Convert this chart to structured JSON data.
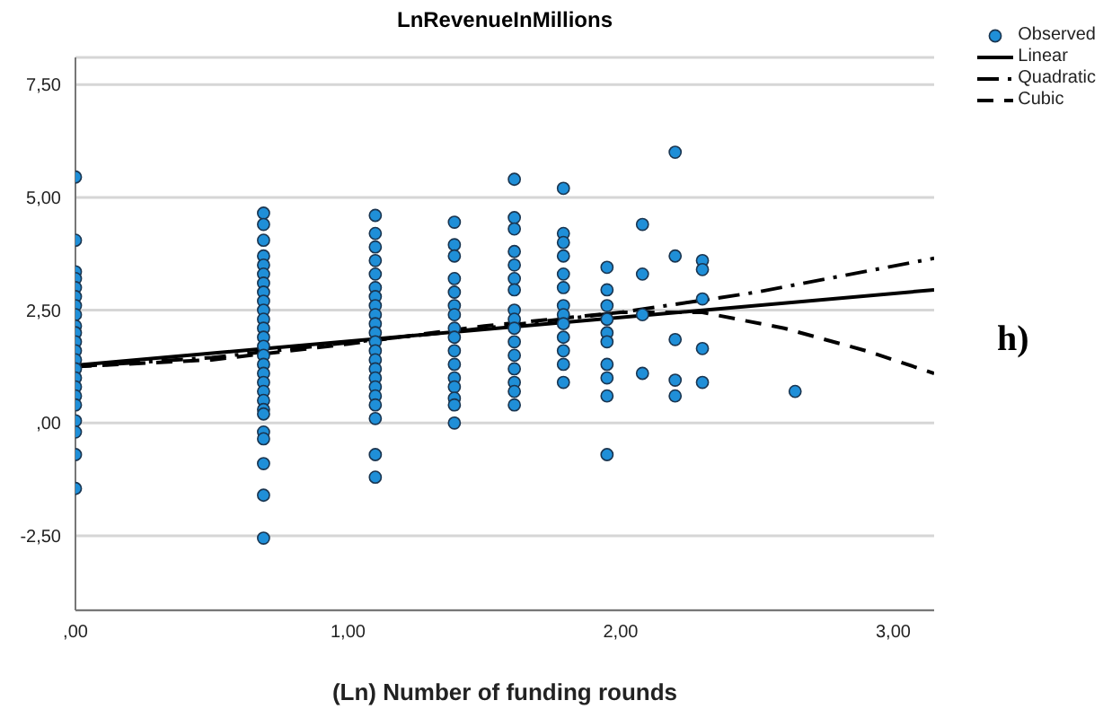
{
  "chart_data": {
    "type": "scatter",
    "title": "LnRevenueInMillions",
    "xlabel": "(Ln) Number of funding rounds",
    "annotations": [
      "h)"
    ],
    "xlim": [
      0,
      3.15
    ],
    "xticks": [
      {
        "value": 0,
        "label": ",00"
      },
      {
        "value": 1,
        "label": "1,00"
      },
      {
        "value": 2,
        "label": "2,00"
      },
      {
        "value": 3,
        "label": "3,00"
      }
    ],
    "ylim": [
      -4.15,
      8.1
    ],
    "yticks": [
      {
        "value": -2.5,
        "label": "-2,50"
      },
      {
        "value": 0,
        "label": ",00"
      },
      {
        "value": 2.5,
        "label": "2,50"
      },
      {
        "value": 5,
        "label": "5,00"
      },
      {
        "value": 7.5,
        "label": "7,50"
      }
    ],
    "grid": "y",
    "legend": "top right",
    "series": [
      {
        "name": "Observed",
        "marker": "circle",
        "color": "#1f8fd8",
        "x": [
          0,
          0,
          0,
          0,
          0,
          0,
          0,
          0,
          0,
          0,
          0,
          0,
          0,
          0,
          0,
          0,
          0,
          0,
          0,
          0,
          0,
          0,
          0.69,
          0.69,
          0.69,
          0.69,
          0.69,
          0.69,
          0.69,
          0.69,
          0.69,
          0.69,
          0.69,
          0.69,
          0.69,
          0.69,
          0.69,
          0.69,
          0.69,
          0.69,
          0.69,
          0.69,
          0.69,
          0.69,
          0.69,
          0.69,
          0.69,
          0.69,
          0.69,
          1.1,
          1.1,
          1.1,
          1.1,
          1.1,
          1.1,
          1.1,
          1.1,
          1.1,
          1.1,
          1.1,
          1.1,
          1.1,
          1.1,
          1.1,
          1.1,
          1.1,
          1.1,
          1.1,
          1.1,
          1.1,
          1.1,
          1.39,
          1.39,
          1.39,
          1.39,
          1.39,
          1.39,
          1.39,
          1.39,
          1.39,
          1.39,
          1.39,
          1.39,
          1.39,
          1.39,
          1.39,
          1.39,
          1.61,
          1.61,
          1.61,
          1.61,
          1.61,
          1.61,
          1.61,
          1.61,
          1.61,
          1.61,
          1.61,
          1.61,
          1.61,
          1.61,
          1.61,
          1.61,
          1.79,
          1.79,
          1.79,
          1.79,
          1.79,
          1.79,
          1.79,
          1.79,
          1.79,
          1.79,
          1.79,
          1.79,
          1.79,
          1.95,
          1.95,
          1.95,
          1.95,
          1.95,
          1.95,
          1.95,
          1.95,
          1.95,
          1.95,
          2.08,
          2.08,
          2.08,
          2.08,
          2.2,
          2.2,
          2.2,
          2.2,
          2.2,
          2.3,
          2.3,
          2.3,
          2.3,
          2.3,
          2.64
        ],
        "values": [
          5.45,
          4.05,
          3.35,
          3.2,
          3.0,
          2.8,
          2.6,
          2.4,
          2.15,
          2.0,
          1.8,
          1.6,
          1.4,
          1.2,
          1.0,
          0.8,
          0.6,
          0.4,
          0.05,
          -0.2,
          -0.7,
          -1.45,
          4.65,
          4.4,
          4.05,
          3.7,
          3.5,
          3.3,
          3.1,
          2.9,
          2.7,
          2.5,
          2.3,
          2.1,
          1.9,
          1.7,
          1.5,
          1.3,
          1.1,
          0.9,
          0.7,
          0.5,
          0.3,
          0.2,
          -0.2,
          -0.35,
          -0.9,
          -1.6,
          -2.55,
          4.6,
          4.2,
          3.9,
          3.6,
          3.3,
          3.0,
          2.8,
          2.6,
          2.4,
          2.2,
          2.0,
          1.8,
          1.6,
          1.4,
          1.2,
          1.0,
          0.8,
          0.6,
          0.4,
          0.1,
          -0.7,
          -1.2,
          4.45,
          3.95,
          3.7,
          3.2,
          2.9,
          2.6,
          2.4,
          2.1,
          1.9,
          1.6,
          1.3,
          1.0,
          0.8,
          0.55,
          0.4,
          0.0,
          5.4,
          4.55,
          4.3,
          3.8,
          3.5,
          3.2,
          2.95,
          2.5,
          2.3,
          2.1,
          1.8,
          1.5,
          1.2,
          0.9,
          0.7,
          0.4,
          5.2,
          4.2,
          4.0,
          3.7,
          3.3,
          3.0,
          2.6,
          2.4,
          2.2,
          1.9,
          1.6,
          1.3,
          0.9,
          3.45,
          2.95,
          2.6,
          2.3,
          2.0,
          1.8,
          1.3,
          1.0,
          0.6,
          -0.7,
          4.4,
          3.3,
          2.4,
          1.1,
          6.0,
          3.7,
          1.85,
          0.95,
          0.6,
          3.6,
          3.4,
          2.75,
          1.65,
          0.9,
          0.7
        ]
      },
      {
        "name": "Linear",
        "type": "line",
        "line_style": "solid",
        "color": "#000000",
        "x": [
          0,
          3.15
        ],
        "values": [
          1.28,
          2.95
        ]
      },
      {
        "name": "Quadratic",
        "type": "line",
        "line_style": "dashdot",
        "color": "#000000",
        "x": [
          0,
          0.5,
          1,
          1.5,
          2,
          2.5,
          3.15
        ],
        "values": [
          1.25,
          1.45,
          1.78,
          2.1,
          2.45,
          2.9,
          3.65
        ]
      },
      {
        "name": "Cubic",
        "type": "line",
        "line_style": "dashed",
        "color": "#000000",
        "x": [
          0,
          0.5,
          1,
          1.5,
          2,
          2.3,
          2.6,
          2.9,
          3.15
        ],
        "values": [
          1.25,
          1.4,
          1.75,
          2.15,
          2.45,
          2.45,
          2.1,
          1.6,
          1.1
        ]
      }
    ]
  }
}
